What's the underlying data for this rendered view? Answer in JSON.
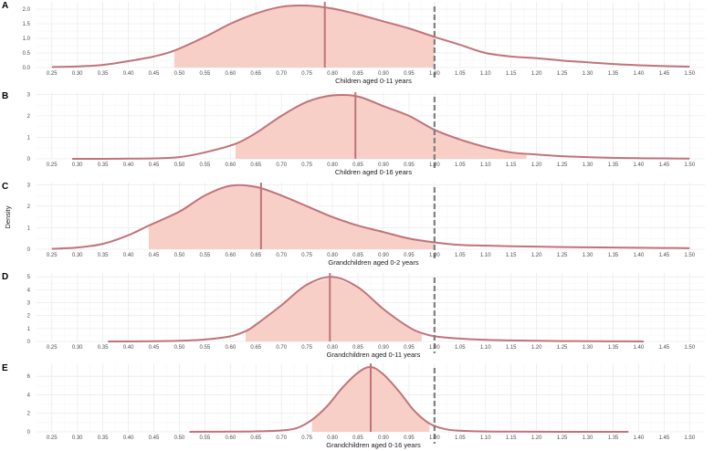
{
  "chart_data": {
    "type": "area",
    "ylabel": "Density",
    "xlim": [
      0.22,
      1.53
    ],
    "x_ticks": [
      0.25,
      0.3,
      0.35,
      0.4,
      0.45,
      0.5,
      0.55,
      0.6,
      0.65,
      0.7,
      0.75,
      0.8,
      0.85,
      0.9,
      0.95,
      1.0,
      1.05,
      1.1,
      1.15,
      1.2,
      1.25,
      1.3,
      1.35,
      1.4,
      1.45,
      1.5
    ],
    "x_tick_labels": [
      "0.25",
      "0.30",
      "0.35",
      "0.40",
      "0.45",
      "0.50",
      "0.55",
      "0.60",
      "0.65",
      "0.70",
      "0.75",
      "0.80",
      "0.85",
      "0.90",
      "0.95",
      "1.00",
      "1.05",
      "1.10",
      "1.15",
      "1.20",
      "1.25",
      "1.30",
      "1.35",
      "1.40",
      "1.45",
      "1.50"
    ],
    "reference_line_x": 1.0,
    "grid": true,
    "colors": {
      "line": "#c0737a",
      "fill": "#f7cfc6",
      "reference": "#7f7f7f",
      "grid": "#ebebeb"
    },
    "panels": [
      {
        "label": "A",
        "xlabel": "Children aged 0-11 years",
        "ylim": [
          0,
          2.25
        ],
        "y_ticks": [
          0,
          0.5,
          1.0,
          1.5,
          2.0
        ],
        "y_tick_labels": [
          "0.0",
          "0.5",
          "1.0",
          "1.5",
          "2.0"
        ],
        "median": 0.785,
        "interval": [
          0.49,
          1.0
        ],
        "density": {
          "x": [
            0.25,
            0.3,
            0.35,
            0.4,
            0.45,
            0.49,
            0.55,
            0.6,
            0.65,
            0.7,
            0.75,
            0.8,
            0.85,
            0.9,
            0.95,
            1.0,
            1.05,
            1.1,
            1.15,
            1.2,
            1.25,
            1.3,
            1.35,
            1.4,
            1.45,
            1.5
          ],
          "y": [
            0.02,
            0.04,
            0.09,
            0.22,
            0.38,
            0.58,
            1.05,
            1.5,
            1.85,
            2.08,
            2.12,
            2.02,
            1.82,
            1.58,
            1.34,
            1.05,
            0.78,
            0.5,
            0.38,
            0.32,
            0.24,
            0.18,
            0.12,
            0.08,
            0.05,
            0.03
          ]
        }
      },
      {
        "label": "B",
        "xlabel": "Children aged 0-16 years",
        "ylim": [
          0,
          3.1
        ],
        "y_ticks": [
          0,
          1,
          2,
          3
        ],
        "y_tick_labels": [
          "0",
          "1",
          "2",
          "3"
        ],
        "median": 0.845,
        "interval": [
          0.61,
          1.18
        ],
        "density": {
          "x": [
            0.29,
            0.35,
            0.4,
            0.45,
            0.5,
            0.55,
            0.61,
            0.65,
            0.7,
            0.75,
            0.8,
            0.85,
            0.9,
            0.95,
            1.0,
            1.05,
            1.1,
            1.15,
            1.2,
            1.25,
            1.3,
            1.35,
            1.4,
            1.45,
            1.5
          ],
          "y": [
            0.0,
            0.0,
            0.01,
            0.02,
            0.08,
            0.3,
            0.7,
            1.2,
            2.0,
            2.65,
            2.95,
            2.9,
            2.45,
            2.0,
            1.35,
            0.9,
            0.55,
            0.3,
            0.2,
            0.12,
            0.08,
            0.05,
            0.03,
            0.02,
            0.01
          ]
        }
      },
      {
        "label": "C",
        "xlabel": "Grandchildren aged 0-2 years",
        "ylim": [
          0,
          3.1
        ],
        "y_ticks": [
          0,
          1,
          2,
          3
        ],
        "y_tick_labels": [
          "0",
          "1",
          "2",
          "3"
        ],
        "median": 0.66,
        "interval": [
          0.44,
          1.0
        ],
        "density": {
          "x": [
            0.25,
            0.3,
            0.35,
            0.4,
            0.44,
            0.5,
            0.55,
            0.6,
            0.65,
            0.7,
            0.75,
            0.8,
            0.85,
            0.9,
            0.95,
            1.0,
            1.05,
            1.1,
            1.15,
            1.2,
            1.25,
            1.3,
            1.35,
            1.4,
            1.45,
            1.5
          ],
          "y": [
            0.02,
            0.08,
            0.25,
            0.65,
            1.1,
            1.75,
            2.5,
            2.95,
            2.9,
            2.5,
            2.0,
            1.5,
            1.1,
            0.8,
            0.5,
            0.32,
            0.2,
            0.17,
            0.14,
            0.12,
            0.1,
            0.09,
            0.08,
            0.07,
            0.06,
            0.05
          ]
        }
      },
      {
        "label": "D",
        "xlabel": "Grandchildren aged 0-11 years",
        "ylim": [
          0,
          5.3
        ],
        "y_ticks": [
          0,
          1,
          2,
          3,
          4,
          5
        ],
        "y_tick_labels": [
          "0",
          "1",
          "2",
          "3",
          "4",
          "5"
        ],
        "median": 0.795,
        "interval": [
          0.63,
          0.975
        ],
        "density": {
          "x": [
            0.36,
            0.4,
            0.45,
            0.5,
            0.55,
            0.6,
            0.63,
            0.65,
            0.7,
            0.75,
            0.8,
            0.85,
            0.9,
            0.95,
            0.975,
            1.0,
            1.05,
            1.1,
            1.15,
            1.2,
            1.25,
            1.3,
            1.35,
            1.41
          ],
          "y": [
            0.0,
            0.0,
            0.02,
            0.05,
            0.15,
            0.4,
            0.8,
            1.3,
            2.8,
            4.4,
            5.0,
            4.2,
            2.5,
            1.1,
            0.65,
            0.4,
            0.22,
            0.12,
            0.08,
            0.05,
            0.03,
            0.02,
            0.01,
            0.0
          ]
        }
      },
      {
        "label": "E",
        "xlabel": "Grandchildren aged 0-16 years",
        "ylim": [
          0,
          7.4
        ],
        "y_ticks": [
          0,
          2,
          4,
          6
        ],
        "y_tick_labels": [
          "0",
          "2",
          "4",
          "6"
        ],
        "median": 0.875,
        "interval": [
          0.76,
          0.99
        ],
        "density": {
          "x": [
            0.52,
            0.55,
            0.6,
            0.65,
            0.7,
            0.73,
            0.76,
            0.79,
            0.82,
            0.85,
            0.875,
            0.9,
            0.93,
            0.96,
            0.99,
            1.02,
            1.05,
            1.1,
            1.15,
            1.2,
            1.25,
            1.3,
            1.38
          ],
          "y": [
            0.0,
            0.01,
            0.02,
            0.05,
            0.15,
            0.4,
            1.3,
            2.8,
            4.8,
            6.4,
            7.0,
            6.2,
            4.4,
            2.3,
            0.9,
            0.3,
            0.12,
            0.04,
            0.02,
            0.01,
            0.0,
            0.0,
            0.0
          ]
        }
      }
    ]
  }
}
